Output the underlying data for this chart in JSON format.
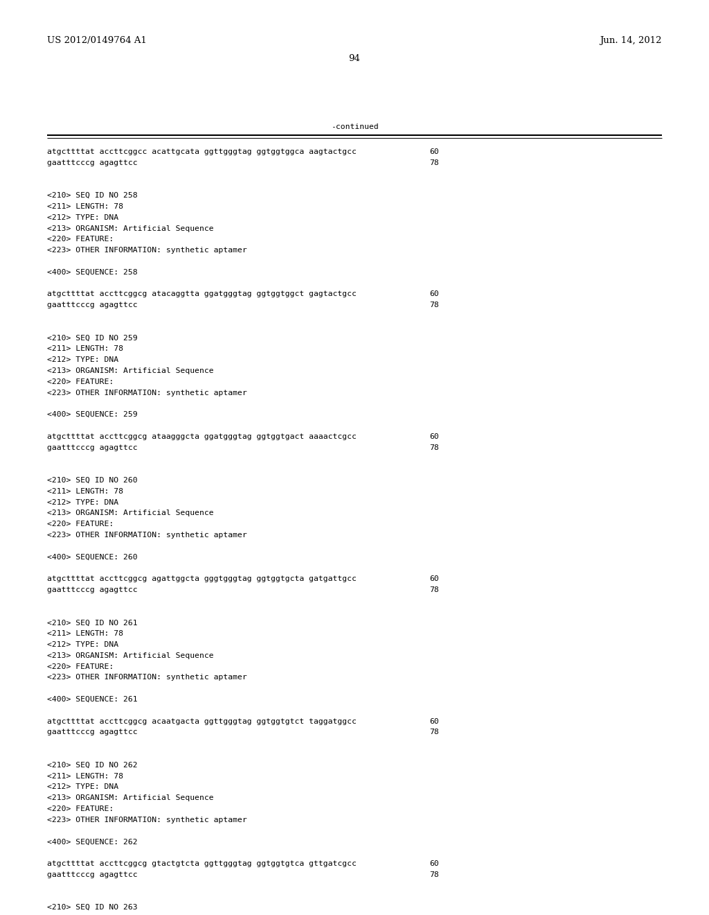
{
  "background_color": "#ffffff",
  "header_left": "US 2012/0149764 A1",
  "header_right": "Jun. 14, 2012",
  "page_number": "94",
  "continued_label": "-continued",
  "header_font_size": 9.5,
  "body_font_size": 8.2,
  "lines": [
    {
      "text": "atgcttttat accttcggcc acattgcata ggttgggtag ggtggtggca aagtactgcc",
      "num": "60",
      "type": "seq"
    },
    {
      "text": "gaatttcccg agagttcc",
      "num": "78",
      "type": "seq"
    },
    {
      "text": "",
      "type": "blank"
    },
    {
      "text": "",
      "type": "blank"
    },
    {
      "text": "<210> SEQ ID NO 258",
      "type": "meta"
    },
    {
      "text": "<211> LENGTH: 78",
      "type": "meta"
    },
    {
      "text": "<212> TYPE: DNA",
      "type": "meta"
    },
    {
      "text": "<213> ORGANISM: Artificial Sequence",
      "type": "meta"
    },
    {
      "text": "<220> FEATURE:",
      "type": "meta"
    },
    {
      "text": "<223> OTHER INFORMATION: synthetic aptamer",
      "type": "meta"
    },
    {
      "text": "",
      "type": "blank"
    },
    {
      "text": "<400> SEQUENCE: 258",
      "type": "meta"
    },
    {
      "text": "",
      "type": "blank"
    },
    {
      "text": "atgcttttat accttcggcg atacaggtta ggatgggtag ggtggtggct gagtactgcc",
      "num": "60",
      "type": "seq"
    },
    {
      "text": "gaatttcccg agagttcc",
      "num": "78",
      "type": "seq"
    },
    {
      "text": "",
      "type": "blank"
    },
    {
      "text": "",
      "type": "blank"
    },
    {
      "text": "<210> SEQ ID NO 259",
      "type": "meta"
    },
    {
      "text": "<211> LENGTH: 78",
      "type": "meta"
    },
    {
      "text": "<212> TYPE: DNA",
      "type": "meta"
    },
    {
      "text": "<213> ORGANISM: Artificial Sequence",
      "type": "meta"
    },
    {
      "text": "<220> FEATURE:",
      "type": "meta"
    },
    {
      "text": "<223> OTHER INFORMATION: synthetic aptamer",
      "type": "meta"
    },
    {
      "text": "",
      "type": "blank"
    },
    {
      "text": "<400> SEQUENCE: 259",
      "type": "meta"
    },
    {
      "text": "",
      "type": "blank"
    },
    {
      "text": "atgcttttat accttcggcg ataagggcta ggatgggtag ggtggtgact aaaactcgcc",
      "num": "60",
      "type": "seq"
    },
    {
      "text": "gaatttcccg agagttcc",
      "num": "78",
      "type": "seq"
    },
    {
      "text": "",
      "type": "blank"
    },
    {
      "text": "",
      "type": "blank"
    },
    {
      "text": "<210> SEQ ID NO 260",
      "type": "meta"
    },
    {
      "text": "<211> LENGTH: 78",
      "type": "meta"
    },
    {
      "text": "<212> TYPE: DNA",
      "type": "meta"
    },
    {
      "text": "<213> ORGANISM: Artificial Sequence",
      "type": "meta"
    },
    {
      "text": "<220> FEATURE:",
      "type": "meta"
    },
    {
      "text": "<223> OTHER INFORMATION: synthetic aptamer",
      "type": "meta"
    },
    {
      "text": "",
      "type": "blank"
    },
    {
      "text": "<400> SEQUENCE: 260",
      "type": "meta"
    },
    {
      "text": "",
      "type": "blank"
    },
    {
      "text": "atgcttttat accttcggcg agattggcta gggtgggtag ggtggtgcta gatgattgcc",
      "num": "60",
      "type": "seq"
    },
    {
      "text": "gaatttcccg agagttcc",
      "num": "78",
      "type": "seq"
    },
    {
      "text": "",
      "type": "blank"
    },
    {
      "text": "",
      "type": "blank"
    },
    {
      "text": "<210> SEQ ID NO 261",
      "type": "meta"
    },
    {
      "text": "<211> LENGTH: 78",
      "type": "meta"
    },
    {
      "text": "<212> TYPE: DNA",
      "type": "meta"
    },
    {
      "text": "<213> ORGANISM: Artificial Sequence",
      "type": "meta"
    },
    {
      "text": "<220> FEATURE:",
      "type": "meta"
    },
    {
      "text": "<223> OTHER INFORMATION: synthetic aptamer",
      "type": "meta"
    },
    {
      "text": "",
      "type": "blank"
    },
    {
      "text": "<400> SEQUENCE: 261",
      "type": "meta"
    },
    {
      "text": "",
      "type": "blank"
    },
    {
      "text": "atgcttttat accttcggcg acaatgacta ggttgggtag ggtggtgtct taggatggcc",
      "num": "60",
      "type": "seq"
    },
    {
      "text": "gaatttcccg agagttcc",
      "num": "78",
      "type": "seq"
    },
    {
      "text": "",
      "type": "blank"
    },
    {
      "text": "",
      "type": "blank"
    },
    {
      "text": "<210> SEQ ID NO 262",
      "type": "meta"
    },
    {
      "text": "<211> LENGTH: 78",
      "type": "meta"
    },
    {
      "text": "<212> TYPE: DNA",
      "type": "meta"
    },
    {
      "text": "<213> ORGANISM: Artificial Sequence",
      "type": "meta"
    },
    {
      "text": "<220> FEATURE:",
      "type": "meta"
    },
    {
      "text": "<223> OTHER INFORMATION: synthetic aptamer",
      "type": "meta"
    },
    {
      "text": "",
      "type": "blank"
    },
    {
      "text": "<400> SEQUENCE: 262",
      "type": "meta"
    },
    {
      "text": "",
      "type": "blank"
    },
    {
      "text": "atgcttttat accttcggcg gtactgtcta ggttgggtag ggtggtgtca gttgatcgcc",
      "num": "60",
      "type": "seq"
    },
    {
      "text": "gaatttcccg agagttcc",
      "num": "78",
      "type": "seq"
    },
    {
      "text": "",
      "type": "blank"
    },
    {
      "text": "",
      "type": "blank"
    },
    {
      "text": "<210> SEQ ID NO 263",
      "type": "meta"
    }
  ]
}
